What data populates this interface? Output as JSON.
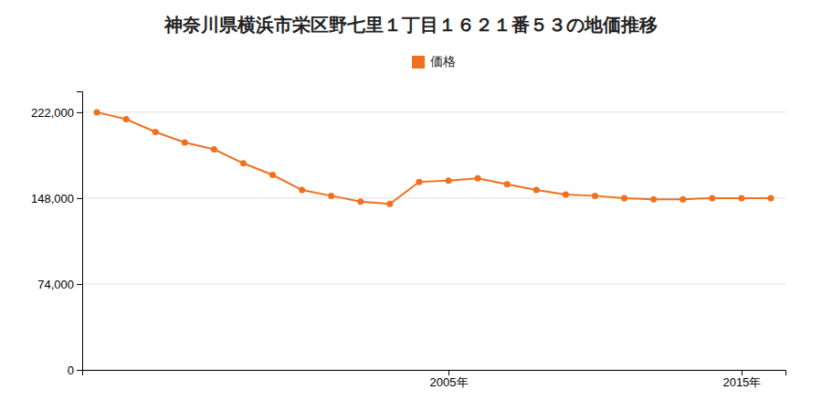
{
  "chart_data": {
    "type": "line",
    "title": "神奈川県横浜市栄区野七里１丁目１６２１番５３の地価推移",
    "x": [
      1993,
      1994,
      1995,
      1996,
      1997,
      1998,
      1999,
      2000,
      2001,
      2002,
      2003,
      2004,
      2005,
      2006,
      2007,
      2008,
      2009,
      2010,
      2011,
      2012,
      2013,
      2014,
      2015,
      2016
    ],
    "series": [
      {
        "name": "価格",
        "color": "#f07020",
        "marker": "circle",
        "values": [
          222000,
          216000,
          205000,
          196000,
          190000,
          178000,
          168000,
          155000,
          150000,
          145000,
          143000,
          162000,
          163000,
          165000,
          160000,
          155000,
          151000,
          150000,
          148000,
          147000,
          147000,
          148000,
          148000,
          148000
        ]
      }
    ],
    "xlim": [
      1992.5,
      2016.5
    ],
    "xticks": [
      {
        "value": 2005,
        "label": "2005年"
      },
      {
        "value": 2015,
        "label": "2015年"
      }
    ],
    "ylim": [
      0,
      240000
    ],
    "yticks": [
      0,
      {
        "value": 74000,
        "label": "74,000"
      },
      {
        "value": 148000,
        "label": "148,000"
      },
      {
        "value": 222000,
        "label": "222,000"
      }
    ],
    "grid": true,
    "legend": "top"
  }
}
